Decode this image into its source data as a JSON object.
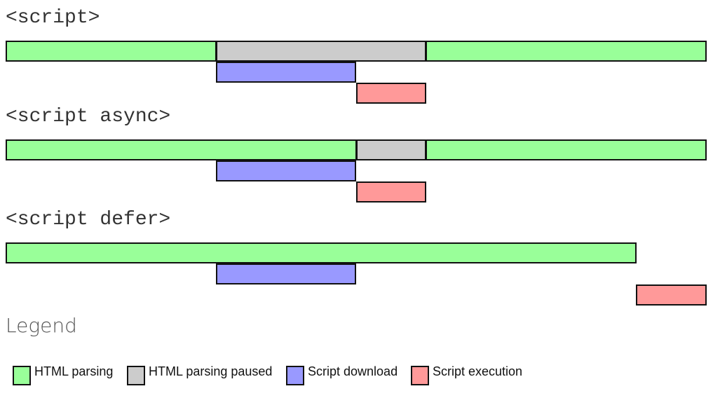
{
  "colors": {
    "html_parsing": "#99ff99",
    "html_parsing_paused": "#cccccc",
    "script_download": "#9999ff",
    "script_execution": "#ff9999"
  },
  "timelines": [
    {
      "heading": "<script>",
      "rows": [
        [
          {
            "type": "html_parsing",
            "start": 0,
            "end": 3
          },
          {
            "type": "html_parsing_paused",
            "start": 3,
            "end": 6
          },
          {
            "type": "html_parsing",
            "start": 6,
            "end": 10
          }
        ],
        [
          {
            "type": "script_download",
            "start": 3,
            "end": 5
          }
        ],
        [
          {
            "type": "script_execution",
            "start": 5,
            "end": 6
          }
        ]
      ]
    },
    {
      "heading": "<script async>",
      "rows": [
        [
          {
            "type": "html_parsing",
            "start": 0,
            "end": 5
          },
          {
            "type": "html_parsing_paused",
            "start": 5,
            "end": 6
          },
          {
            "type": "html_parsing",
            "start": 6,
            "end": 10
          }
        ],
        [
          {
            "type": "script_download",
            "start": 3,
            "end": 5
          }
        ],
        [
          {
            "type": "script_execution",
            "start": 5,
            "end": 6
          }
        ]
      ]
    },
    {
      "heading": "<script defer>",
      "rows": [
        [
          {
            "type": "html_parsing",
            "start": 0,
            "end": 9
          }
        ],
        [
          {
            "type": "script_download",
            "start": 3,
            "end": 5
          }
        ],
        [
          {
            "type": "script_execution",
            "start": 9,
            "end": 10
          }
        ]
      ]
    }
  ],
  "legend": {
    "title": "Legend",
    "items": [
      {
        "type": "html_parsing",
        "label": "HTML parsing"
      },
      {
        "type": "html_parsing_paused",
        "label": "HTML parsing paused"
      },
      {
        "type": "script_download",
        "label": "Script download"
      },
      {
        "type": "script_execution",
        "label": "Script execution"
      }
    ]
  }
}
